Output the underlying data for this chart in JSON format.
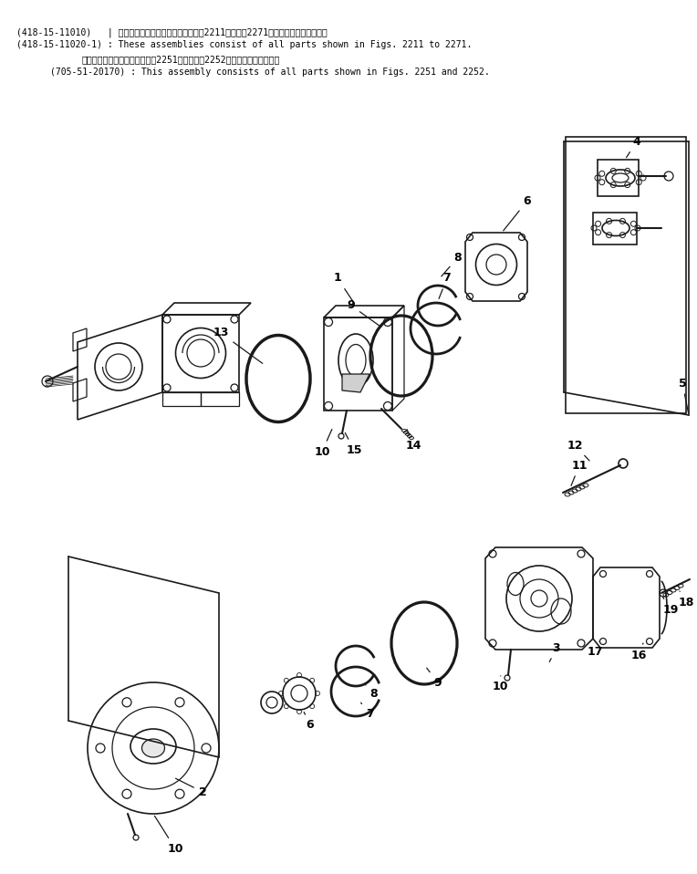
{
  "title_lines": [
    "(418-15-11010)   | これらのアセンブリの構成部品は第2211図から第2271図の部品まで含みます。",
    "(418-15-11020-1) : These assemblies consist of all parts shown in Figs. 2211 to 2271.",
    "このアセンブリの構成部品は第2251図および第2252図の部品を含みます。",
    "(705-51-20170) : This assembly consists of all parts shown in Figs. 2251 and 2252."
  ],
  "bg_color": "#ffffff",
  "line_color": "#1a1a1a",
  "text_color": "#000000",
  "font_size_title": 7.0,
  "font_size_label": 9
}
